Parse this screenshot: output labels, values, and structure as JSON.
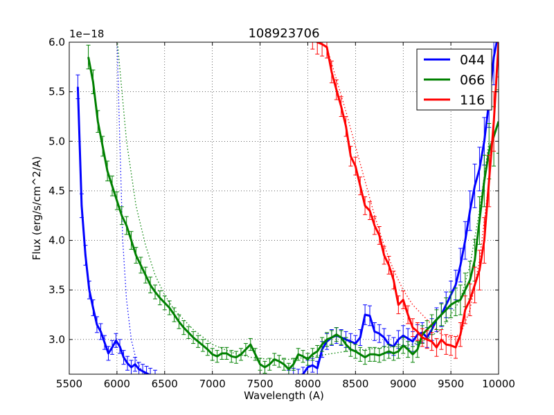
{
  "chart_data": {
    "type": "line",
    "title": "108923706",
    "xlabel": "Wavelength (A)",
    "ylabel": "Flux (erg/s/cm^2/A)",
    "offset_text": "1e−18",
    "xlim": [
      5500,
      10000
    ],
    "ylim": [
      2.65,
      6.0
    ],
    "xticks": [
      5500,
      6000,
      6500,
      7000,
      7500,
      8000,
      8500,
      9000,
      9500,
      10000
    ],
    "xtick_labels": [
      "5500",
      "6000",
      "6500",
      "7000",
      "7500",
      "8000",
      "8500",
      "9000",
      "9500",
      "10000"
    ],
    "yticks": [
      3.0,
      3.5,
      4.0,
      4.5,
      5.0,
      5.5,
      6.0
    ],
    "ytick_labels": [
      "3.0",
      "3.5",
      "4.0",
      "4.5",
      "5.0",
      "5.5",
      "6.0"
    ],
    "grid": true,
    "legend_position": "top-right",
    "series": [
      {
        "name": "044",
        "color": "#0000ff",
        "x": [
          5590,
          5630,
          5670,
          5710,
          5750,
          5790,
          5830,
          5870,
          5910,
          5950,
          5990,
          6030,
          6070,
          6110,
          6150,
          6190,
          6230,
          6270,
          6310,
          6350,
          6400,
          7800,
          7850,
          7900,
          7950,
          8000,
          8050,
          8100,
          8150,
          8200,
          8250,
          8300,
          8350,
          8400,
          8450,
          8500,
          8550,
          8600,
          8650,
          8700,
          8750,
          8800,
          8850,
          8900,
          8950,
          9000,
          9050,
          9100,
          9150,
          9200,
          9250,
          9300,
          9350,
          9400,
          9450,
          9500,
          9550,
          9600,
          9650,
          9700,
          9750,
          9800,
          9850,
          9900,
          9950,
          10000
        ],
        "y": [
          5.55,
          4.35,
          3.85,
          3.5,
          3.32,
          3.15,
          3.08,
          2.97,
          2.86,
          2.92,
          2.99,
          2.93,
          2.82,
          2.76,
          2.72,
          2.75,
          2.7,
          2.68,
          2.66,
          2.64,
          2.62,
          2.62,
          2.64,
          2.63,
          2.65,
          2.72,
          2.74,
          2.71,
          2.9,
          2.98,
          3.02,
          3.04,
          3.02,
          3.0,
          2.98,
          2.96,
          3.02,
          3.25,
          3.24,
          3.08,
          3.06,
          3.02,
          2.95,
          2.93,
          3.0,
          3.04,
          3.01,
          2.98,
          3.05,
          3.07,
          3.02,
          3.1,
          3.2,
          3.25,
          3.35,
          3.45,
          3.55,
          3.75,
          4.0,
          4.3,
          4.55,
          4.72,
          5.0,
          5.4,
          5.85,
          6.1
        ],
        "err": [
          0.12,
          0.12,
          0.1,
          0.09,
          0.08,
          0.08,
          0.08,
          0.07,
          0.07,
          0.07,
          0.07,
          0.07,
          0.07,
          0.07,
          0.07,
          0.07,
          0.07,
          0.07,
          0.07,
          0.07,
          0.07,
          0.07,
          0.07,
          0.07,
          0.07,
          0.07,
          0.07,
          0.07,
          0.08,
          0.08,
          0.08,
          0.08,
          0.08,
          0.08,
          0.08,
          0.08,
          0.08,
          0.1,
          0.1,
          0.09,
          0.09,
          0.09,
          0.09,
          0.09,
          0.09,
          0.1,
          0.1,
          0.1,
          0.1,
          0.1,
          0.1,
          0.11,
          0.12,
          0.12,
          0.13,
          0.14,
          0.15,
          0.17,
          0.19,
          0.2,
          0.22,
          0.22,
          0.24,
          0.26,
          0.28,
          0.3
        ],
        "model_x": [
          6000,
          6030,
          6060,
          6100,
          6150,
          6200,
          6250,
          6300
        ],
        "model_y": [
          6.05,
          5.0,
          4.0,
          3.4,
          3.0,
          2.8,
          2.7,
          2.64
        ]
      },
      {
        "name": "066",
        "color": "#008000",
        "x": [
          5700,
          5750,
          5800,
          5850,
          5900,
          5950,
          6000,
          6050,
          6100,
          6150,
          6200,
          6250,
          6300,
          6350,
          6400,
          6450,
          6500,
          6550,
          6600,
          6650,
          6700,
          6750,
          6800,
          6850,
          6900,
          6950,
          7000,
          7050,
          7100,
          7150,
          7200,
          7250,
          7300,
          7350,
          7400,
          7450,
          7500,
          7550,
          7600,
          7650,
          7700,
          7750,
          7800,
          7850,
          7900,
          7950,
          8000,
          8050,
          8100,
          8150,
          8200,
          8250,
          8300,
          8350,
          8400,
          8450,
          8500,
          8550,
          8600,
          8650,
          8700,
          8750,
          8800,
          8850,
          8900,
          8950,
          9000,
          9050,
          9100,
          9150,
          9200,
          9250,
          9300,
          9350,
          9400,
          9450,
          9500,
          9550,
          9600,
          9650,
          9700,
          9750,
          9800,
          9850,
          9900,
          9950,
          10000
        ],
        "y": [
          5.85,
          5.6,
          5.2,
          4.95,
          4.7,
          4.55,
          4.4,
          4.25,
          4.15,
          4.0,
          3.85,
          3.75,
          3.65,
          3.55,
          3.48,
          3.42,
          3.37,
          3.32,
          3.25,
          3.18,
          3.12,
          3.07,
          3.02,
          2.98,
          2.94,
          2.9,
          2.85,
          2.83,
          2.86,
          2.86,
          2.83,
          2.82,
          2.85,
          2.9,
          2.95,
          2.85,
          2.75,
          2.72,
          2.75,
          2.8,
          2.78,
          2.75,
          2.7,
          2.75,
          2.85,
          2.83,
          2.8,
          2.85,
          2.88,
          2.95,
          3.0,
          3.02,
          3.05,
          3.02,
          2.95,
          2.9,
          2.88,
          2.85,
          2.82,
          2.85,
          2.85,
          2.84,
          2.86,
          2.88,
          2.86,
          2.88,
          2.94,
          2.9,
          2.85,
          2.9,
          3.05,
          3.1,
          3.15,
          3.2,
          3.25,
          3.3,
          3.35,
          3.38,
          3.4,
          3.5,
          3.6,
          3.8,
          4.2,
          4.6,
          4.9,
          5.05,
          5.2
        ],
        "err": [
          0.12,
          0.12,
          0.11,
          0.1,
          0.1,
          0.1,
          0.09,
          0.09,
          0.09,
          0.09,
          0.08,
          0.08,
          0.08,
          0.08,
          0.07,
          0.07,
          0.07,
          0.07,
          0.07,
          0.07,
          0.07,
          0.06,
          0.06,
          0.06,
          0.06,
          0.06,
          0.06,
          0.06,
          0.06,
          0.06,
          0.06,
          0.06,
          0.06,
          0.06,
          0.06,
          0.06,
          0.06,
          0.06,
          0.06,
          0.06,
          0.06,
          0.06,
          0.06,
          0.06,
          0.06,
          0.06,
          0.06,
          0.06,
          0.06,
          0.07,
          0.07,
          0.07,
          0.07,
          0.07,
          0.07,
          0.07,
          0.07,
          0.07,
          0.07,
          0.07,
          0.07,
          0.07,
          0.07,
          0.07,
          0.07,
          0.07,
          0.08,
          0.08,
          0.08,
          0.08,
          0.09,
          0.09,
          0.1,
          0.1,
          0.11,
          0.12,
          0.13,
          0.14,
          0.15,
          0.17,
          0.19,
          0.21,
          0.24,
          0.26,
          0.28,
          0.3,
          0.32
        ],
        "model_x": [
          6000,
          6100,
          6200,
          6300,
          6400,
          6500,
          6600,
          6800,
          7000,
          7200,
          7400,
          7600,
          7800,
          8000,
          8200,
          8400,
          8600,
          8800,
          9000,
          9200,
          9400,
          9600,
          9700,
          9800,
          9900
        ],
        "model_y": [
          6.05,
          5.0,
          4.35,
          3.95,
          3.65,
          3.45,
          3.3,
          3.1,
          2.95,
          2.87,
          2.82,
          2.8,
          2.8,
          2.82,
          2.85,
          2.88,
          2.9,
          2.92,
          2.93,
          2.98,
          3.1,
          3.4,
          3.75,
          4.3,
          5.0
        ]
      },
      {
        "name": "116",
        "color": "#ff0000",
        "x": [
          8050,
          8100,
          8150,
          8200,
          8250,
          8300,
          8350,
          8400,
          8450,
          8500,
          8550,
          8600,
          8650,
          8700,
          8750,
          8800,
          8850,
          8900,
          8950,
          9000,
          9050,
          9100,
          9150,
          9200,
          9250,
          9300,
          9350,
          9400,
          9450,
          9500,
          9550,
          9600,
          9650,
          9700,
          9750,
          9800,
          9850,
          9900,
          9950,
          10000
        ],
        "y": [
          6.05,
          6.0,
          5.98,
          5.95,
          5.7,
          5.52,
          5.35,
          5.15,
          4.85,
          4.75,
          4.55,
          4.35,
          4.3,
          4.15,
          4.05,
          3.85,
          3.75,
          3.6,
          3.35,
          3.4,
          3.25,
          3.12,
          3.08,
          3.02,
          3.0,
          2.98,
          2.92,
          3.0,
          2.95,
          2.94,
          2.92,
          3.05,
          3.3,
          3.4,
          3.55,
          3.7,
          4.0,
          4.6,
          5.2,
          6.0
        ],
        "err": [
          0.12,
          0.12,
          0.12,
          0.11,
          0.11,
          0.1,
          0.1,
          0.1,
          0.1,
          0.09,
          0.09,
          0.09,
          0.09,
          0.09,
          0.09,
          0.09,
          0.09,
          0.09,
          0.09,
          0.09,
          0.09,
          0.09,
          0.09,
          0.09,
          0.09,
          0.09,
          0.09,
          0.1,
          0.1,
          0.1,
          0.11,
          0.12,
          0.14,
          0.16,
          0.18,
          0.2,
          0.23,
          0.26,
          0.3,
          0.35
        ],
        "model_x": [
          8000,
          8200,
          8400,
          8500,
          8600,
          8700,
          8800,
          8900,
          9000,
          9100,
          9200,
          9300,
          9400,
          9500,
          9600,
          9700,
          9800,
          9900,
          10000
        ],
        "model_y": [
          6.05,
          5.95,
          5.3,
          4.95,
          4.6,
          4.25,
          3.95,
          3.7,
          3.5,
          3.35,
          3.25,
          3.15,
          3.05,
          3.02,
          3.05,
          3.3,
          3.8,
          4.6,
          5.9
        ]
      }
    ]
  }
}
